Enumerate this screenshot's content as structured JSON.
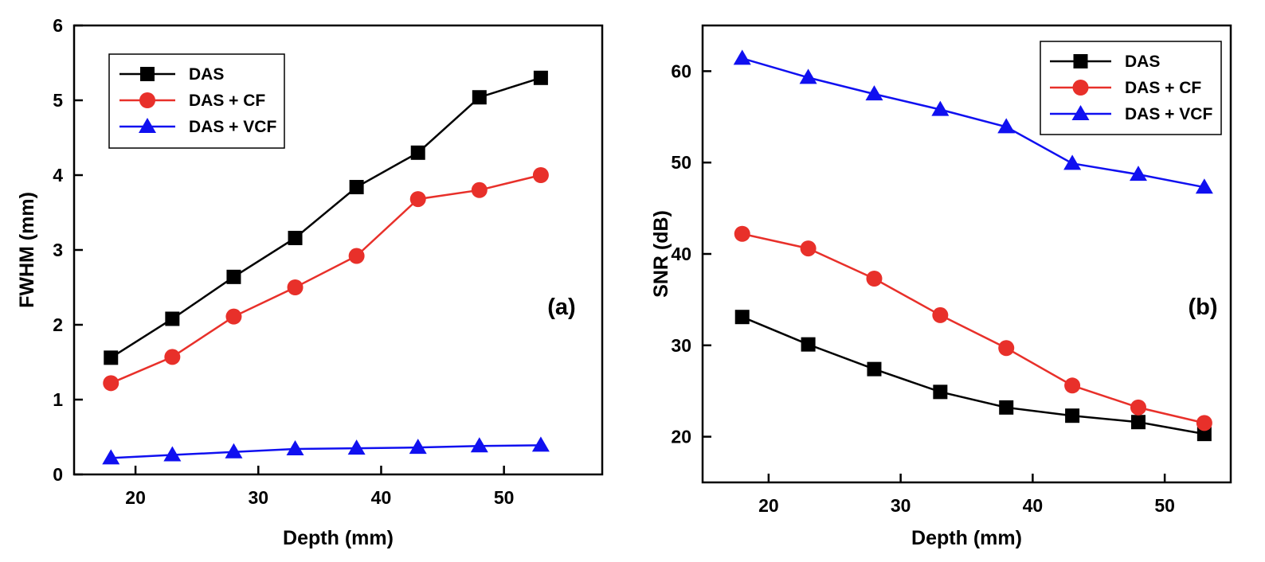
{
  "chart_data": [
    {
      "type": "line",
      "panel_label": "(a)",
      "xlabel": "Depth (mm)",
      "ylabel": "FWHM (mm)",
      "xlim": [
        15,
        58
      ],
      "ylim": [
        0,
        6
      ],
      "xticks": [
        20,
        30,
        40,
        50
      ],
      "yticks": [
        0,
        1,
        2,
        3,
        4,
        5,
        6
      ],
      "x": [
        18,
        23,
        28,
        33,
        38,
        43,
        48,
        53
      ],
      "grid": false,
      "legend_position": "top-left",
      "series": [
        {
          "name": "DAS",
          "color": "#000000",
          "marker": "square",
          "values": [
            1.56,
            2.08,
            2.64,
            3.16,
            3.84,
            4.3,
            5.04,
            5.3
          ]
        },
        {
          "name": "DAS + CF",
          "color": "#e8302a",
          "marker": "circle",
          "values": [
            1.22,
            1.57,
            2.11,
            2.5,
            2.92,
            3.68,
            3.8,
            4.0
          ]
        },
        {
          "name": "DAS + VCF",
          "color": "#1010f0",
          "marker": "triangle",
          "values": [
            0.22,
            0.26,
            0.3,
            0.34,
            0.35,
            0.36,
            0.38,
            0.39
          ]
        }
      ]
    },
    {
      "type": "line",
      "panel_label": "(b)",
      "xlabel": "Depth (mm)",
      "ylabel": "SNR (dB)",
      "xlim": [
        15,
        55
      ],
      "ylim": [
        15,
        65
      ],
      "xticks": [
        20,
        30,
        40,
        50
      ],
      "yticks": [
        20,
        30,
        40,
        50,
        60
      ],
      "x": [
        18,
        23,
        28,
        33,
        38,
        43,
        48,
        53
      ],
      "grid": false,
      "legend_position": "top-right",
      "series": [
        {
          "name": "DAS",
          "color": "#000000",
          "marker": "square",
          "values": [
            33.1,
            30.1,
            27.4,
            24.9,
            23.2,
            22.3,
            21.6,
            20.3
          ]
        },
        {
          "name": "DAS + CF",
          "color": "#e8302a",
          "marker": "circle",
          "values": [
            42.2,
            40.6,
            37.3,
            33.3,
            29.7,
            25.6,
            23.2,
            21.5
          ]
        },
        {
          "name": "DAS + VCF",
          "color": "#1010f0",
          "marker": "triangle",
          "values": [
            61.4,
            59.3,
            57.5,
            55.8,
            53.9,
            49.9,
            48.7,
            47.3
          ]
        }
      ]
    }
  ]
}
